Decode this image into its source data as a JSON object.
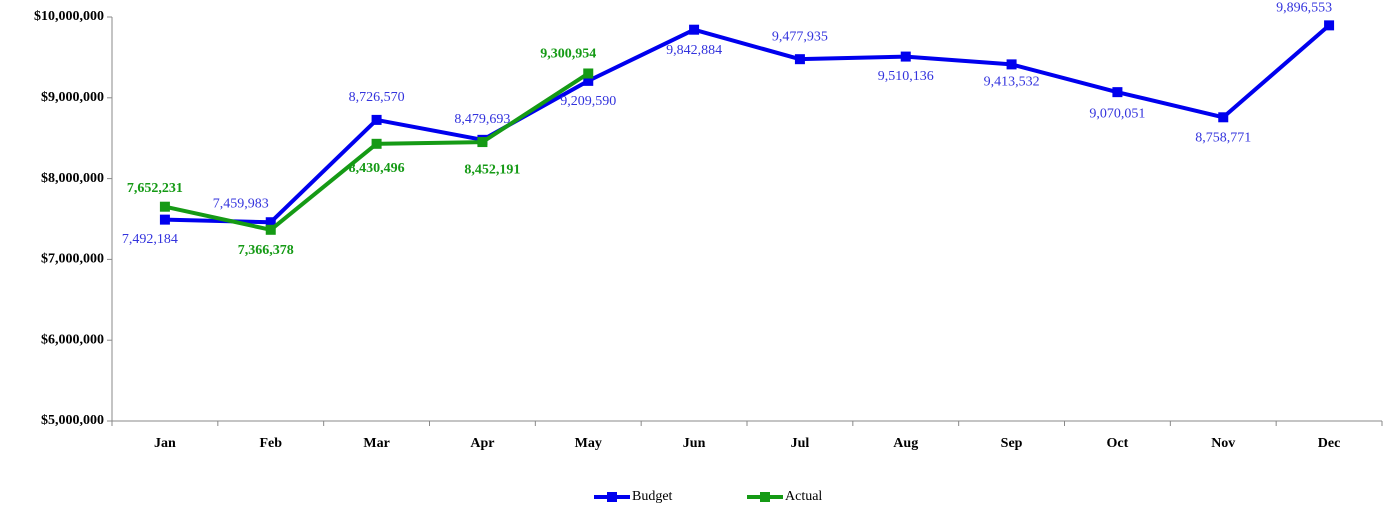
{
  "chart_data": {
    "type": "line",
    "categories": [
      "Jan",
      "Feb",
      "Mar",
      "Apr",
      "May",
      "Jun",
      "Jul",
      "Aug",
      "Sep",
      "Oct",
      "Nov",
      "Dec"
    ],
    "series": [
      {
        "name": "Budget",
        "color": "#0000ee",
        "values": [
          7492184,
          7459983,
          8726570,
          8479693,
          9209590,
          9842884,
          9477935,
          9510136,
          9413532,
          9070051,
          8758771,
          9896553
        ],
        "value_labels": [
          "7,492,184",
          "7,459,983",
          "8,726,570",
          "8,479,693",
          "9,209,590",
          "9,842,884",
          "9,477,935",
          "9,510,136",
          "9,413,532",
          "9,070,051",
          "8,758,771",
          "9,896,553"
        ]
      },
      {
        "name": "Actual",
        "color": "#159a15",
        "values": [
          7652231,
          7366378,
          8430496,
          8452191,
          9300954,
          null,
          null,
          null,
          null,
          null,
          null,
          null
        ],
        "value_labels": [
          "7,652,231",
          "7,366,378",
          "8,430,496",
          "8,452,191",
          "9,300,954",
          null,
          null,
          null,
          null,
          null,
          null,
          null
        ]
      }
    ],
    "ylim": [
      5000000,
      10000000
    ],
    "yticks": [
      {
        "value": 5000000,
        "label": "$5,000,000"
      },
      {
        "value": 6000000,
        "label": "$6,000,000"
      },
      {
        "value": 7000000,
        "label": "$7,000,000"
      },
      {
        "value": 8000000,
        "label": "$8,000,000"
      },
      {
        "value": 9000000,
        "label": "$9,000,000"
      },
      {
        "value": 10000000,
        "label": "$10,000,000"
      }
    ],
    "legend": "bottom"
  }
}
